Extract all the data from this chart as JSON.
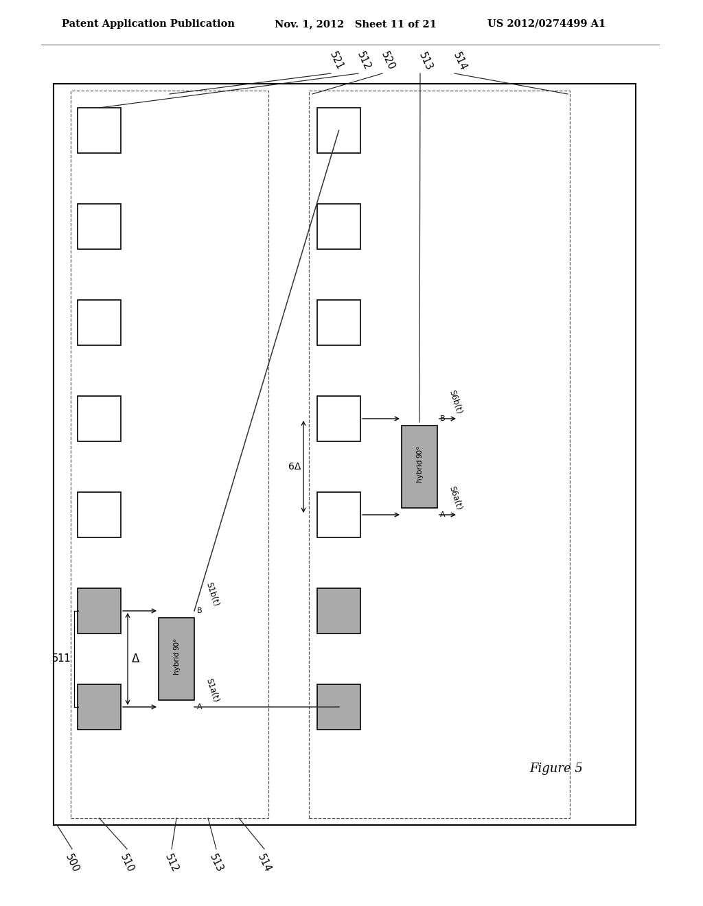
{
  "bg": "#ffffff",
  "gray": "#aaaaaa",
  "header_left": "Patent Application Publication",
  "header_mid": "Nov. 1, 2012   Sheet 11 of 21",
  "header_right": "US 2012/0274499 A1",
  "fig_label": "Figure 5",
  "delta": "Δ",
  "six_delta": "6Δ",
  "s1a": "S1a(t)",
  "s1b": "S1b(t)",
  "s6a": "S6a(t)",
  "s6b": "S6b(t)",
  "label_511": "511",
  "label_500": "500",
  "label_510": "510",
  "label_512": "512",
  "label_513": "513",
  "label_514": "514",
  "label_520": "520",
  "label_521": "521"
}
